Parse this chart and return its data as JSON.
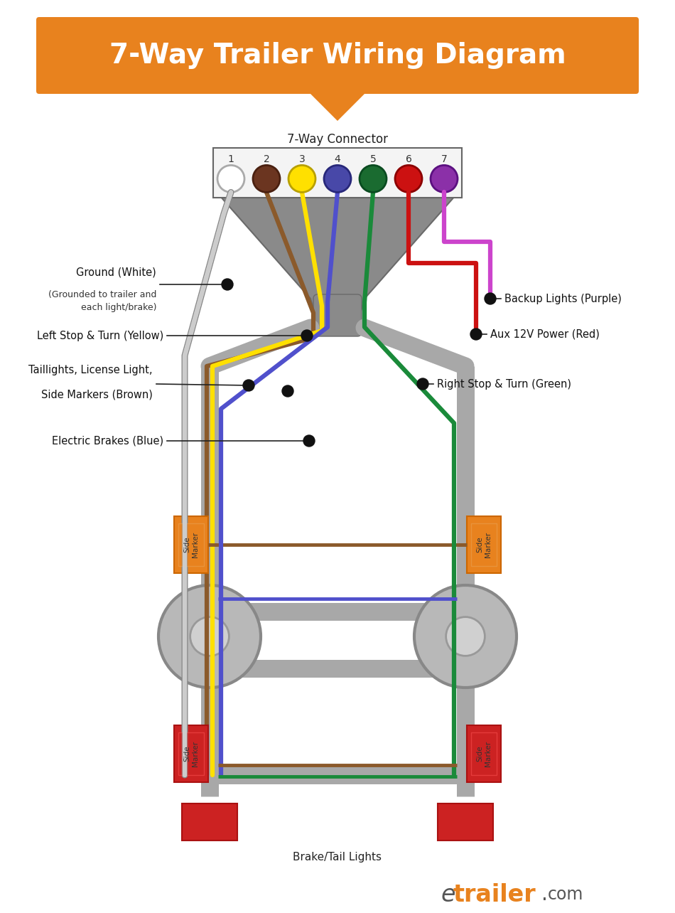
{
  "title": "7-Way Trailer Wiring Diagram",
  "title_color": "#FFFFFF",
  "title_bg": "#E8821E",
  "bg": "#FFFFFF",
  "conn_label": "7-Way Connector",
  "pins": [
    "1",
    "2",
    "3",
    "4",
    "5",
    "6",
    "7"
  ],
  "pin_face": [
    "#FFFFFF",
    "#6B3520",
    "#FFE000",
    "#4848A8",
    "#1A6B30",
    "#CC1111",
    "#8B30A8"
  ],
  "pin_edge": [
    "#AAAAAA",
    "#4A2010",
    "#B8A000",
    "#28287A",
    "#0A4B20",
    "#8B0000",
    "#5B1080"
  ],
  "wc_white": "#CCCCCC",
  "wc_brown": "#8B5A2B",
  "wc_yellow": "#FFE000",
  "wc_blue": "#5050CC",
  "wc_green": "#1A8A3A",
  "wc_red": "#CC1111",
  "wc_purple": "#CC44CC",
  "orange": "#E8821E",
  "red_light": "#CC2222",
  "gray_rail": "#A8A8A8",
  "gray_sheath": "#9A9A9A",
  "brake_tail_label": "Brake/Tail Lights"
}
